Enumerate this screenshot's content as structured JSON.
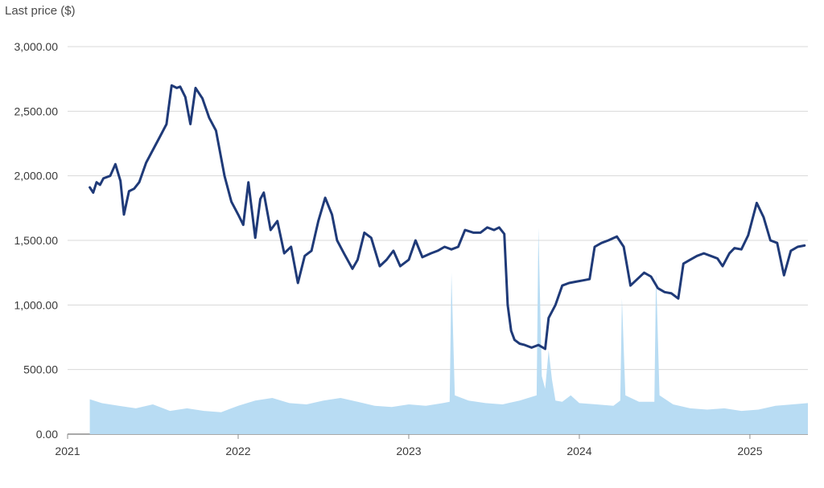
{
  "chart_data": {
    "type": "line",
    "title": "",
    "ylabel": "Last price ($)",
    "xlabel": "",
    "ylim": [
      0,
      3000
    ],
    "xlim": [
      2021.0,
      2025.34
    ],
    "grid": true,
    "y_ticks": [
      "0.00",
      "500.00",
      "1,000.00",
      "1,500.00",
      "2,000.00",
      "2,500.00",
      "3,000.00"
    ],
    "y_tick_values": [
      0,
      500,
      1000,
      1500,
      2000,
      2500,
      3000
    ],
    "x_ticks": [
      "2021",
      "2022",
      "2023",
      "2024",
      "2025"
    ],
    "x_tick_values": [
      2021,
      2022,
      2023,
      2024,
      2025
    ],
    "colors": {
      "price_line": "#1f3a78",
      "volume_area": "#b8dcf3",
      "grid": "#d8d8d8",
      "baseline": "#8c8c8c"
    },
    "series": [
      {
        "type": "line",
        "x": [
          2021.13,
          2021.15,
          2021.17,
          2021.19,
          2021.21,
          2021.25,
          2021.28,
          2021.31,
          2021.33,
          2021.36,
          2021.39,
          2021.42,
          2021.46,
          2021.5,
          2021.54,
          2021.58,
          2021.61,
          2021.64,
          2021.66,
          2021.69,
          2021.72,
          2021.75,
          2021.79,
          2021.83,
          2021.87,
          2021.92,
          2021.96,
          2022.0,
          2022.03,
          2022.06,
          2022.1,
          2022.13,
          2022.15,
          2022.19,
          2022.23,
          2022.27,
          2022.31,
          2022.35,
          2022.39,
          2022.43,
          2022.47,
          2022.51,
          2022.55,
          2022.58,
          2022.62,
          2022.67,
          2022.7,
          2022.74,
          2022.78,
          2022.83,
          2022.87,
          2022.91,
          2022.95,
          2023.0,
          2023.04,
          2023.08,
          2023.13,
          2023.17,
          2023.21,
          2023.25,
          2023.29,
          2023.33,
          2023.38,
          2023.42,
          2023.46,
          2023.5,
          2023.53,
          2023.56,
          2023.58,
          2023.6,
          2023.62,
          2023.63,
          2023.65,
          2023.68,
          2023.72,
          2023.76,
          2023.8,
          2023.82,
          2023.86,
          2023.9,
          2023.94,
          2023.98,
          2024.02,
          2024.06,
          2024.09,
          2024.13,
          2024.17,
          2024.22,
          2024.26,
          2024.3,
          2024.34,
          2024.38,
          2024.42,
          2024.46,
          2024.5,
          2024.54,
          2024.58,
          2024.61,
          2024.65,
          2024.69,
          2024.73,
          2024.77,
          2024.81,
          2024.84,
          2024.88,
          2024.91,
          2024.95,
          2024.99,
          2025.04,
          2025.08,
          2025.12,
          2025.16,
          2025.2,
          2025.24,
          2025.28,
          2025.32
        ],
        "y": [
          1910,
          1870,
          1950,
          1930,
          1980,
          2000,
          2090,
          1960,
          1700,
          1880,
          1900,
          1950,
          2100,
          2200,
          2300,
          2400,
          2700,
          2680,
          2690,
          2610,
          2400,
          2680,
          2600,
          2450,
          2350,
          2000,
          1800,
          1700,
          1620,
          1950,
          1520,
          1820,
          1870,
          1580,
          1650,
          1400,
          1450,
          1170,
          1380,
          1420,
          1650,
          1830,
          1700,
          1500,
          1400,
          1280,
          1350,
          1560,
          1520,
          1300,
          1350,
          1420,
          1300,
          1350,
          1500,
          1370,
          1400,
          1420,
          1450,
          1430,
          1450,
          1580,
          1560,
          1560,
          1600,
          1580,
          1600,
          1550,
          1000,
          800,
          730,
          720,
          700,
          690,
          670,
          690,
          660,
          900,
          1000,
          1150,
          1170,
          1180,
          1190,
          1200,
          1450,
          1480,
          1500,
          1530,
          1450,
          1150,
          1200,
          1250,
          1220,
          1130,
          1100,
          1090,
          1050,
          1320,
          1350,
          1380,
          1400,
          1380,
          1360,
          1300,
          1400,
          1440,
          1430,
          1540,
          1790,
          1680,
          1500,
          1480,
          1230,
          1420,
          1450,
          1460
        ]
      },
      {
        "type": "area",
        "x": [
          2021.13,
          2021.2,
          2021.3,
          2021.4,
          2021.5,
          2021.6,
          2021.7,
          2021.8,
          2021.9,
          2022.0,
          2022.1,
          2022.2,
          2022.3,
          2022.4,
          2022.5,
          2022.6,
          2022.7,
          2022.8,
          2022.9,
          2023.0,
          2023.1,
          2023.2,
          2023.24,
          2023.25,
          2023.27,
          2023.35,
          2023.45,
          2023.55,
          2023.65,
          2023.75,
          2023.76,
          2023.78,
          2023.8,
          2023.82,
          2023.84,
          2023.86,
          2023.9,
          2023.95,
          2024.0,
          2024.1,
          2024.2,
          2024.24,
          2024.25,
          2024.27,
          2024.35,
          2024.44,
          2024.45,
          2024.47,
          2024.55,
          2024.65,
          2024.75,
          2024.85,
          2024.95,
          2025.05,
          2025.15,
          2025.25,
          2025.34
        ],
        "y": [
          270,
          240,
          220,
          200,
          230,
          180,
          200,
          180,
          170,
          220,
          260,
          280,
          240,
          230,
          260,
          280,
          250,
          220,
          210,
          230,
          220,
          240,
          250,
          1250,
          300,
          260,
          240,
          230,
          260,
          300,
          1600,
          450,
          350,
          650,
          420,
          260,
          250,
          300,
          240,
          230,
          220,
          260,
          1050,
          300,
          250,
          250,
          1250,
          300,
          230,
          200,
          190,
          200,
          180,
          190,
          220,
          230,
          240
        ]
      }
    ]
  }
}
